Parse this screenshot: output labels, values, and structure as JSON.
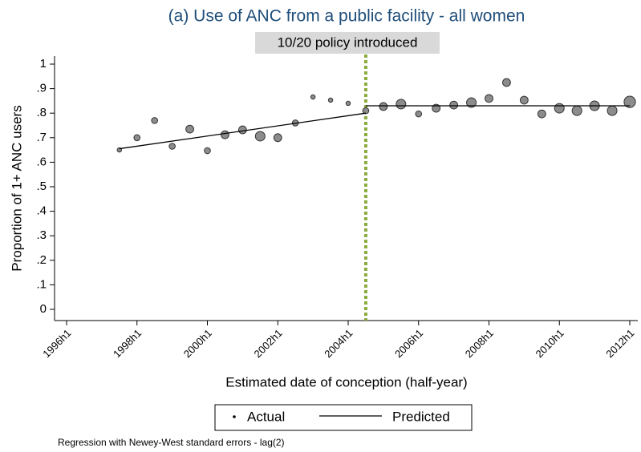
{
  "chart_data": {
    "type": "scatter",
    "title": "(a) Use of ANC from a public facility - all women",
    "annotation": "10/20 policy introduced",
    "policy_x": 17,
    "x_label": "Estimated date of conception (half-year)",
    "y_label": "Proportion of 1+ ANC users",
    "note": "Regression with Newey-West standard errors - lag(2)",
    "xlim": [
      0,
      32
    ],
    "xticks": [
      {
        "value": 0,
        "label": "1996h1"
      },
      {
        "value": 4,
        "label": "1998h1"
      },
      {
        "value": 8,
        "label": "2000h1"
      },
      {
        "value": 12,
        "label": "2002h1"
      },
      {
        "value": 16,
        "label": "2004h1"
      },
      {
        "value": 20,
        "label": "2006h1"
      },
      {
        "value": 24,
        "label": "2008h1"
      },
      {
        "value": 28,
        "label": "2010h1"
      },
      {
        "value": 32,
        "label": "2012h1"
      }
    ],
    "ylim": [
      0,
      1
    ],
    "yticks": [
      0,
      {
        "value": 0.1,
        "label": ".1"
      },
      {
        "value": 0.2,
        "label": ".2"
      },
      {
        "value": 0.3,
        "label": ".3"
      },
      {
        "value": 0.4,
        "label": ".4"
      },
      {
        "value": 0.5,
        "label": ".5"
      },
      {
        "value": 0.6,
        "label": ".6"
      },
      {
        "value": 0.7,
        "label": ".7"
      },
      {
        "value": 0.8,
        "label": ".8"
      },
      {
        "value": 0.9,
        "label": ".9"
      },
      1
    ],
    "series": [
      {
        "name": "Actual",
        "color": "#8c8c8c",
        "x": [
          3,
          4,
          5,
          6,
          7,
          8,
          9,
          10,
          11,
          12,
          13,
          14,
          15,
          16,
          17,
          18,
          19,
          20,
          21,
          22,
          23,
          24,
          25,
          26,
          27,
          28,
          29,
          30,
          31,
          32
        ],
        "values": [
          0.65,
          0.7,
          0.77,
          0.665,
          0.735,
          0.647,
          0.712,
          0.732,
          0.706,
          0.7,
          0.76,
          0.866,
          0.853,
          0.84,
          0.81,
          0.827,
          0.837,
          0.797,
          0.82,
          0.833,
          0.843,
          0.86,
          0.925,
          0.853,
          0.797,
          0.82,
          0.81,
          0.83,
          0.81,
          0.846
        ],
        "sizes": [
          1,
          2,
          2,
          2,
          3,
          2,
          3,
          3,
          4,
          3,
          2,
          1,
          1,
          1,
          2,
          3,
          4,
          2,
          3,
          3,
          4,
          3,
          3,
          3,
          3,
          4,
          4,
          4,
          4,
          5
        ]
      },
      {
        "name": "Predicted",
        "color": "#000000",
        "x": [
          3,
          17,
          null,
          17,
          32
        ],
        "values": [
          0.655,
          0.8,
          null,
          0.83,
          0.83
        ]
      }
    ],
    "policy_color": "#8aac3c"
  }
}
